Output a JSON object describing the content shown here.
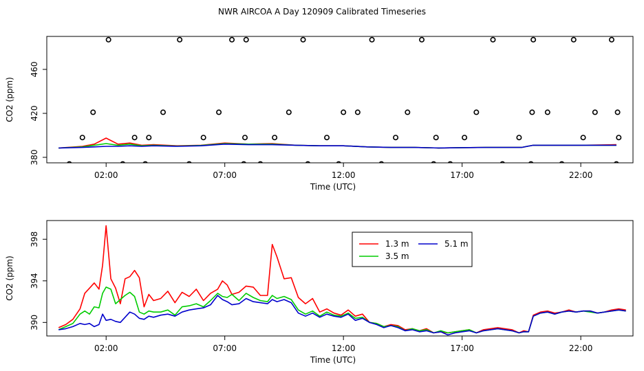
{
  "title": "NWR AIRCOA A  Day 120909  Calibrated Timeseries",
  "chart_data": [
    {
      "type": "line",
      "panel": "top",
      "xlabel": "Time (UTC)",
      "ylabel": "CO2 (ppm)",
      "xlim": [
        -0.5,
        24.2
      ],
      "ylim": [
        375,
        490
      ],
      "xticks": [
        2,
        7,
        12,
        17,
        22
      ],
      "xtick_labels": [
        "02:00",
        "07:00",
        "12:00",
        "17:00",
        "22:00"
      ],
      "yticks": [
        380,
        420,
        460
      ],
      "ytick_labels": [
        "380",
        "420",
        "460"
      ],
      "series": [
        {
          "name": "1.3 m",
          "color": "#ff0000",
          "x": [
            0,
            1,
            1.5,
            2,
            2.5,
            3,
            3.5,
            4,
            5,
            6,
            7,
            8,
            9,
            10,
            11,
            12,
            13,
            14,
            15,
            16,
            17,
            18,
            19,
            19.5,
            20,
            21,
            22,
            23.5
          ],
          "y": [
            388.5,
            390,
            392,
            397.5,
            392,
            393,
            391,
            391.5,
            390.5,
            391,
            393,
            392,
            392.5,
            391,
            390.5,
            390.5,
            389.5,
            389,
            389,
            388.5,
            388.8,
            389,
            389,
            389,
            391,
            391,
            391,
            391.5
          ]
        },
        {
          "name": "3.5 m",
          "color": "#00cc00",
          "x": [
            0,
            1,
            1.5,
            2,
            2.5,
            3,
            3.5,
            4,
            5,
            6,
            7,
            8,
            9,
            10,
            11,
            12,
            13,
            14,
            15,
            16,
            17,
            18,
            19,
            19.5,
            20,
            21,
            22,
            23.5
          ],
          "y": [
            388.5,
            389.5,
            391,
            392.5,
            391,
            392,
            390.5,
            391,
            390.2,
            390.8,
            392.5,
            392,
            392,
            391,
            390.5,
            390.5,
            389.5,
            389,
            389,
            388.5,
            388.8,
            389,
            389,
            389,
            391,
            391,
            391,
            391
          ]
        },
        {
          "name": "5.1 m",
          "color": "#0000cc",
          "x": [
            0,
            1,
            1.5,
            2,
            2.5,
            3,
            3.5,
            4,
            5,
            6,
            7,
            8,
            9,
            10,
            11,
            12,
            13,
            14,
            15,
            16,
            17,
            18,
            19,
            19.5,
            20,
            21,
            22,
            23.5
          ],
          "y": [
            388.5,
            389,
            389.5,
            390,
            390,
            390.5,
            390,
            390.5,
            390,
            390.5,
            392,
            391.5,
            391.5,
            391,
            390.5,
            390.5,
            389.5,
            389,
            389,
            388.5,
            388.8,
            389,
            389,
            389,
            391,
            391,
            391,
            391
          ]
        }
      ],
      "scatter_points": {
        "symbol": "open-circle",
        "x": [
          0.45,
          1.0,
          1.45,
          2.1,
          2.7,
          3.2,
          3.65,
          3.8,
          4.4,
          5.1,
          5.5,
          6.1,
          6.75,
          7.3,
          7.8,
          7.85,
          7.9,
          8.5,
          9.1,
          9.7,
          10.3,
          10.5,
          11.3,
          11.8,
          12.0,
          12.6,
          13.2,
          13.6,
          14.2,
          14.7,
          15.3,
          15.8,
          15.9,
          16.5,
          17.1,
          17.6,
          18.3,
          18.7,
          19.4,
          19.9,
          19.95,
          20.0,
          20.6,
          21.2,
          21.7,
          22.1,
          22.6,
          23.3,
          23.5,
          23.55,
          23.6
        ],
        "y": [
          374,
          398,
          421,
          487,
          374,
          398,
          374,
          398,
          421,
          487,
          374,
          398,
          421,
          487,
          374,
          398,
          487,
          374,
          398,
          421,
          487,
          374,
          398,
          374,
          421,
          421,
          487,
          374,
          398,
          421,
          487,
          374,
          398,
          374,
          398,
          421,
          487,
          374,
          398,
          374,
          421,
          487,
          421,
          374,
          487,
          398,
          421,
          487,
          374,
          421,
          398
        ]
      }
    },
    {
      "type": "line",
      "panel": "bottom",
      "xlabel": "Time (UTC)",
      "ylabel": "CO2 (ppm)",
      "xlim": [
        -0.5,
        24.2
      ],
      "ylim": [
        388.7,
        399.8
      ],
      "xticks": [
        2,
        7,
        12,
        17,
        22
      ],
      "xtick_labels": [
        "02:00",
        "07:00",
        "12:00",
        "17:00",
        "22:00"
      ],
      "yticks": [
        390,
        394,
        398
      ],
      "ytick_labels": [
        "390",
        "394",
        "398"
      ],
      "legend": {
        "position": "top-right-center",
        "entries": [
          "1.3 m",
          "3.5 m",
          "5.1 m"
        ]
      },
      "series": [
        {
          "name": "1.3 m",
          "color": "#ff0000",
          "x": [
            0,
            0.3,
            0.6,
            0.9,
            1.1,
            1.3,
            1.5,
            1.7,
            1.85,
            2.0,
            2.2,
            2.4,
            2.6,
            2.8,
            3.0,
            3.2,
            3.4,
            3.6,
            3.8,
            4.0,
            4.3,
            4.6,
            4.9,
            5.2,
            5.5,
            5.8,
            6.1,
            6.4,
            6.7,
            6.9,
            7.1,
            7.3,
            7.6,
            7.9,
            8.2,
            8.5,
            8.8,
            9.0,
            9.2,
            9.5,
            9.8,
            10.1,
            10.4,
            10.7,
            11.0,
            11.3,
            11.6,
            11.9,
            12.2,
            12.5,
            12.8,
            13.1,
            13.4,
            13.7,
            14.0,
            14.3,
            14.6,
            14.9,
            15.2,
            15.5,
            15.8,
            16.1,
            16.4,
            16.7,
            17.0,
            17.3,
            17.6,
            17.9,
            18.2,
            18.5,
            18.8,
            19.1,
            19.4,
            19.6,
            19.8,
            20.0,
            20.3,
            20.6,
            20.9,
            21.2,
            21.5,
            21.8,
            22.1,
            22.4,
            22.7,
            23.0,
            23.3,
            23.6,
            23.9
          ],
          "y": [
            389.5,
            389.8,
            390.3,
            391.3,
            392.8,
            393.3,
            393.8,
            393.2,
            395.5,
            399.3,
            394.2,
            393.3,
            391.8,
            394.2,
            394.4,
            395.0,
            394.3,
            391.5,
            392.7,
            392.1,
            392.3,
            393.0,
            391.9,
            392.9,
            392.5,
            393.2,
            392.1,
            392.8,
            393.2,
            394.0,
            393.6,
            392.7,
            392.9,
            393.5,
            393.4,
            392.6,
            392.6,
            397.5,
            396.3,
            394.2,
            394.3,
            392.4,
            391.8,
            392.3,
            391.0,
            391.3,
            390.9,
            390.7,
            391.2,
            390.6,
            390.8,
            390.0,
            389.9,
            389.6,
            389.8,
            389.7,
            389.3,
            389.4,
            389.2,
            389.4,
            389.0,
            389.1,
            389.0,
            389.1,
            389.2,
            389.3,
            389.0,
            389.3,
            389.4,
            389.5,
            389.4,
            389.3,
            389.0,
            389.2,
            389.1,
            390.7,
            391.0,
            391.1,
            390.9,
            391.0,
            391.2,
            391.0,
            391.1,
            391.1,
            390.9,
            391.0,
            391.2,
            391.3,
            391.2
          ]
        },
        {
          "name": "3.5 m",
          "color": "#00cc00",
          "x": [
            0,
            0.3,
            0.6,
            0.9,
            1.1,
            1.3,
            1.5,
            1.7,
            1.85,
            2.0,
            2.2,
            2.4,
            2.6,
            2.8,
            3.0,
            3.2,
            3.4,
            3.6,
            3.8,
            4.0,
            4.3,
            4.6,
            4.9,
            5.2,
            5.5,
            5.8,
            6.1,
            6.4,
            6.7,
            6.9,
            7.1,
            7.3,
            7.6,
            7.9,
            8.2,
            8.5,
            8.8,
            9.0,
            9.2,
            9.5,
            9.8,
            10.1,
            10.4,
            10.7,
            11.0,
            11.3,
            11.6,
            11.9,
            12.2,
            12.5,
            12.8,
            13.1,
            13.4,
            13.7,
            14.0,
            14.3,
            14.6,
            14.9,
            15.2,
            15.5,
            15.8,
            16.1,
            16.4,
            16.7,
            17.0,
            17.3,
            17.6,
            17.9,
            18.2,
            18.5,
            18.8,
            19.1,
            19.4,
            19.6,
            19.8,
            20.0,
            20.3,
            20.6,
            20.9,
            21.2,
            21.5,
            21.8,
            22.1,
            22.4,
            22.7,
            23.0,
            23.3,
            23.6,
            23.9
          ],
          "y": [
            389.3,
            389.6,
            389.9,
            390.8,
            391.1,
            390.8,
            391.5,
            391.4,
            392.8,
            393.4,
            393.2,
            391.8,
            392.2,
            392.6,
            392.9,
            392.5,
            391.0,
            390.8,
            391.1,
            391.0,
            391.0,
            391.2,
            390.7,
            391.5,
            391.6,
            391.8,
            391.5,
            392.1,
            392.8,
            392.5,
            392.4,
            392.7,
            392.1,
            392.8,
            392.4,
            392.1,
            392.0,
            392.6,
            392.3,
            392.5,
            392.2,
            391.2,
            390.8,
            391.1,
            390.6,
            391.0,
            390.7,
            390.6,
            390.9,
            390.4,
            390.5,
            390.0,
            389.9,
            389.6,
            389.7,
            389.6,
            389.2,
            389.4,
            389.2,
            389.3,
            389.0,
            389.2,
            389.0,
            389.1,
            389.2,
            389.3,
            389.0,
            389.2,
            389.3,
            389.4,
            389.3,
            389.2,
            389.0,
            389.1,
            389.1,
            390.6,
            390.9,
            391.0,
            390.8,
            391.0,
            391.1,
            391.0,
            391.1,
            391.0,
            390.9,
            391.0,
            391.1,
            391.2,
            391.1
          ]
        },
        {
          "name": "5.1 m",
          "color": "#0000cc",
          "x": [
            0,
            0.3,
            0.6,
            0.9,
            1.1,
            1.3,
            1.5,
            1.7,
            1.85,
            2.0,
            2.2,
            2.4,
            2.6,
            2.8,
            3.0,
            3.2,
            3.4,
            3.6,
            3.8,
            4.0,
            4.3,
            4.6,
            4.9,
            5.2,
            5.5,
            5.8,
            6.1,
            6.4,
            6.7,
            6.9,
            7.1,
            7.3,
            7.6,
            7.9,
            8.2,
            8.5,
            8.8,
            9.0,
            9.2,
            9.5,
            9.8,
            10.1,
            10.4,
            10.7,
            11.0,
            11.3,
            11.6,
            11.9,
            12.2,
            12.5,
            12.8,
            13.1,
            13.4,
            13.7,
            14.0,
            14.3,
            14.6,
            14.9,
            15.2,
            15.5,
            15.8,
            16.1,
            16.4,
            16.7,
            17.0,
            17.3,
            17.6,
            17.9,
            18.2,
            18.5,
            18.8,
            19.1,
            19.4,
            19.6,
            19.8,
            20.0,
            20.3,
            20.6,
            20.9,
            21.2,
            21.5,
            21.8,
            22.1,
            22.4,
            22.7,
            23.0,
            23.3,
            23.6,
            23.9
          ],
          "y": [
            389.3,
            389.4,
            389.6,
            389.9,
            389.8,
            389.9,
            389.6,
            389.8,
            390.8,
            390.2,
            390.3,
            390.1,
            390.0,
            390.5,
            391.0,
            390.8,
            390.4,
            390.3,
            390.6,
            390.5,
            390.7,
            390.8,
            390.6,
            391.0,
            391.2,
            391.3,
            391.4,
            391.7,
            392.6,
            392.2,
            392.0,
            391.7,
            391.8,
            392.3,
            392.0,
            391.9,
            391.8,
            392.2,
            392.0,
            392.2,
            391.9,
            390.9,
            390.6,
            390.9,
            390.5,
            390.8,
            390.6,
            390.5,
            390.8,
            390.2,
            390.4,
            390.0,
            389.8,
            389.5,
            389.7,
            389.5,
            389.2,
            389.3,
            389.1,
            389.2,
            389.0,
            389.1,
            388.8,
            389.0,
            389.1,
            389.2,
            389.0,
            389.2,
            389.3,
            389.4,
            389.3,
            389.2,
            389.0,
            389.1,
            389.1,
            390.6,
            390.9,
            391.0,
            390.8,
            391.0,
            391.1,
            391.0,
            391.1,
            391.1,
            390.9,
            391.0,
            391.1,
            391.2,
            391.1
          ]
        }
      ]
    }
  ]
}
